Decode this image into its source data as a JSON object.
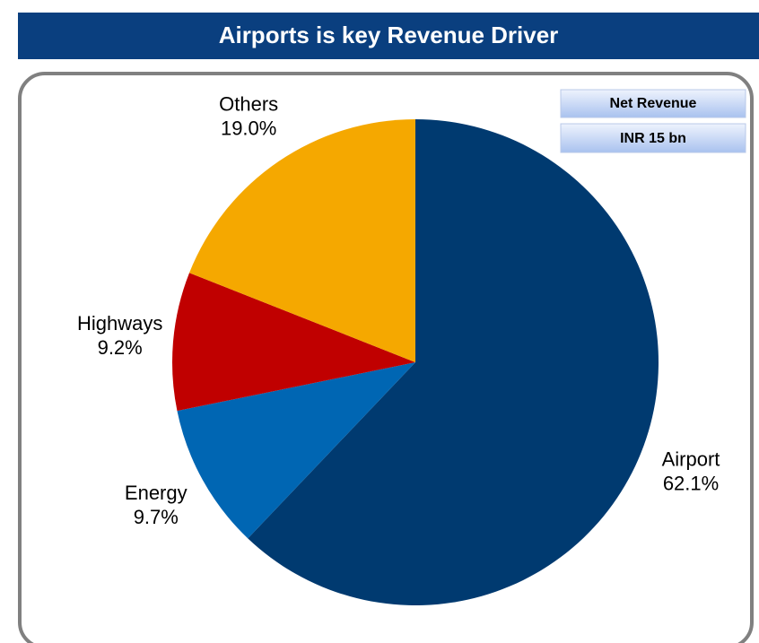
{
  "chart_data": {
    "type": "pie",
    "title": "Airports is key Revenue Driver",
    "categories": [
      "Airport",
      "Energy",
      "Highways",
      "Others"
    ],
    "values": [
      62.1,
      9.7,
      9.2,
      19.0
    ],
    "value_labels": [
      "62.1%",
      "9.7%",
      "9.2%",
      "19.0%"
    ],
    "colors": [
      "#003a70",
      "#0066b3",
      "#c00000",
      "#f5a800"
    ],
    "annotations": [
      "Net Revenue",
      "INR 15 bn"
    ]
  }
}
